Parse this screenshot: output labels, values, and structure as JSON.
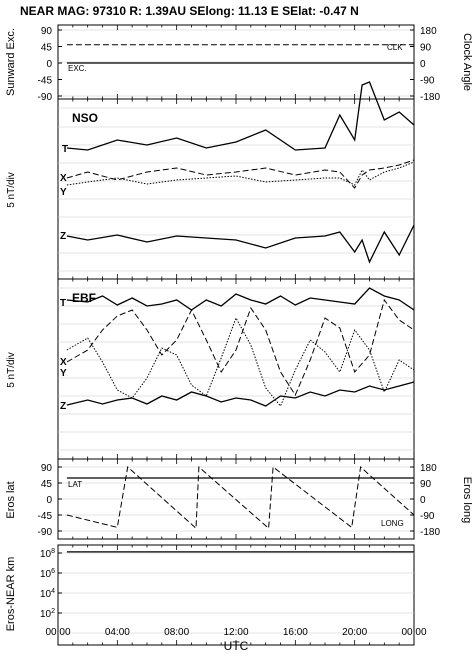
{
  "header": {
    "title": "NEAR MAG: 97310  R: 1.39AU  SElong:   11.13 E  SElat:   -0.47 N"
  },
  "x_axis": {
    "label": "UTC",
    "ticks": [
      "00:00",
      "04:00",
      "08:00",
      "12:00",
      "16:00",
      "20:00",
      "00:00"
    ]
  },
  "chart_data": [
    {
      "type": "line",
      "panel": "sunward-clock",
      "ylabel": "Sunward Exc.",
      "ylabel_right": "Clock Angle",
      "yticks_left": [
        "90",
        "45",
        "0",
        "-45",
        "-90"
      ],
      "yticks_right": [
        "180",
        "90",
        "0",
        "-90",
        "-180"
      ],
      "ylim": [
        -90,
        90
      ],
      "series": [
        {
          "name": "CLK",
          "style": "dashed",
          "x": [
            0.6,
            24
          ],
          "y": [
            50,
            50
          ]
        },
        {
          "name": "EXC.",
          "style": "solid",
          "x": [
            0.6,
            24
          ],
          "y": [
            0,
            0
          ]
        }
      ]
    },
    {
      "type": "line",
      "panel": "NSO",
      "title": "NSO",
      "ylabel": "5 nT/div",
      "labels": [
        "T",
        "X",
        "Y",
        "Z"
      ],
      "x": [
        0.6,
        2,
        4,
        6,
        8,
        10,
        12,
        14,
        16,
        18,
        19,
        20,
        20.5,
        21,
        22,
        23,
        24
      ],
      "series": [
        {
          "name": "T",
          "style": "solid",
          "y": [
            148,
            150,
            140,
            145,
            138,
            148,
            142,
            130,
            150,
            148,
            115,
            140,
            85,
            82,
            120,
            112,
            125
          ]
        },
        {
          "name": "X",
          "style": "dashed",
          "y": [
            178,
            172,
            180,
            172,
            168,
            175,
            172,
            168,
            175,
            170,
            172,
            188,
            175,
            170,
            168,
            165,
            160
          ]
        },
        {
          "name": "Y",
          "style": "dotted",
          "y": [
            185,
            182,
            178,
            184,
            180,
            178,
            176,
            182,
            180,
            178,
            178,
            185,
            170,
            180,
            172,
            168,
            162
          ]
        },
        {
          "name": "Z",
          "style": "solid",
          "y": [
            236,
            240,
            235,
            242,
            236,
            238,
            240,
            248,
            238,
            236,
            232,
            252,
            240,
            262,
            232,
            255,
            225
          ]
        }
      ]
    },
    {
      "type": "line",
      "panel": "EBF",
      "title": "EBF",
      "ylabel": "5 nT/div",
      "labels": [
        "T",
        "X",
        "Y",
        "Z"
      ],
      "x": [
        0.6,
        2,
        3,
        4,
        5,
        6,
        7,
        8,
        9,
        10,
        11,
        12,
        13,
        14,
        15,
        16,
        17,
        18,
        19,
        20,
        21,
        22,
        23,
        24
      ],
      "series": [
        {
          "name": "T",
          "style": "solid",
          "y": [
            300,
            302,
            296,
            305,
            298,
            306,
            304,
            300,
            310,
            300,
            306,
            294,
            300,
            304,
            296,
            305,
            298,
            300,
            302,
            304,
            288,
            296,
            300,
            310
          ]
        },
        {
          "name": "X",
          "style": "dashed",
          "y": [
            362,
            350,
            330,
            316,
            310,
            330,
            355,
            340,
            310,
            340,
            372,
            350,
            308,
            330,
            372,
            395,
            360,
            318,
            328,
            372,
            355,
            300,
            320,
            330
          ]
        },
        {
          "name": "Y",
          "style": "dotted",
          "y": [
            350,
            338,
            362,
            390,
            398,
            378,
            348,
            355,
            385,
            396,
            358,
            318,
            345,
            388,
            406,
            370,
            340,
            352,
            372,
            330,
            350,
            392,
            360,
            370
          ]
        },
        {
          "name": "Z",
          "style": "solid",
          "y": [
            405,
            400,
            404,
            400,
            398,
            404,
            396,
            400,
            392,
            396,
            402,
            398,
            400,
            406,
            396,
            398,
            392,
            396,
            390,
            392,
            386,
            390,
            386,
            382
          ]
        }
      ]
    },
    {
      "type": "line",
      "panel": "eros-lat-long",
      "ylabel": "Eros lat",
      "ylabel_right": "Eros long",
      "yticks_left": [
        "90",
        "45",
        "0",
        "-45",
        "-90"
      ],
      "yticks_right": [
        "180",
        "90",
        "0",
        "-90",
        "-180"
      ],
      "ylim": [
        -90,
        90
      ],
      "series": [
        {
          "name": "LAT",
          "style": "solid",
          "x": [
            0.6,
            24
          ],
          "y": [
            59,
            59
          ]
        },
        {
          "name": "LONG",
          "style": "dashed",
          "x": [
            0.6,
            4,
            4.7,
            9.3,
            9.5,
            14.2,
            14.5,
            19.8,
            20.4,
            24
          ],
          "y": [
            -90,
            -160,
            180,
            -165,
            180,
            -165,
            180,
            -160,
            180,
            -90
          ]
        }
      ]
    },
    {
      "type": "line",
      "panel": "eros-near-distance",
      "ylabel": "Eros-NEAR km",
      "yticks_left": [
        "10^8",
        "10^6",
        "10^4",
        "10^2"
      ],
      "yscale": "log",
      "series": [
        {
          "name": "distance",
          "style": "solid",
          "x": [
            0.6,
            24
          ],
          "y": [
            130000000,
            130000000
          ]
        }
      ]
    }
  ]
}
